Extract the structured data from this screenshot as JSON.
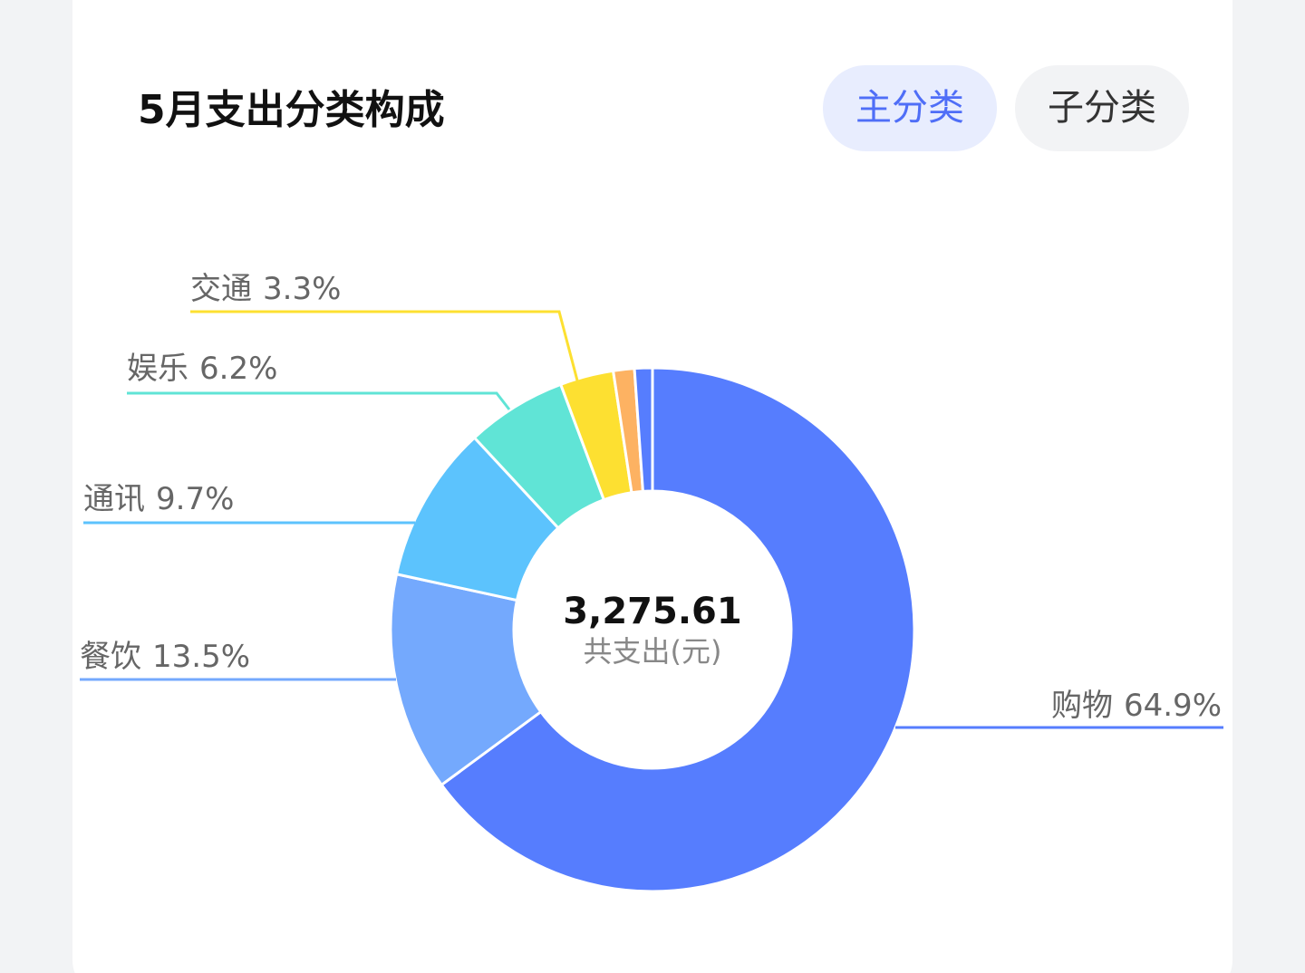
{
  "tabs": [
    "主分类",
    "子分类"
  ],
  "chart_data": {
    "type": "donut",
    "title": "5月支出分类构成",
    "categories": [
      "购物",
      "餐饮",
      "通讯",
      "娱乐",
      "交通",
      null,
      null
    ],
    "values": [
      64.9,
      13.5,
      9.7,
      6.2,
      3.3,
      1.3,
      1.1
    ],
    "value_labels": [
      "64.9%",
      "13.5%",
      "9.7%",
      "6.2%",
      "3.3%",
      null,
      null
    ],
    "colors": [
      "#567dfe",
      "#74a9fd",
      "#5cc3fd",
      "#60e4d6",
      "#fde031",
      "#fdb262",
      "#567dfe"
    ],
    "total": {
      "value": 3275.61,
      "label": "3,275.61"
    },
    "total_caption": "共支出(元)"
  }
}
